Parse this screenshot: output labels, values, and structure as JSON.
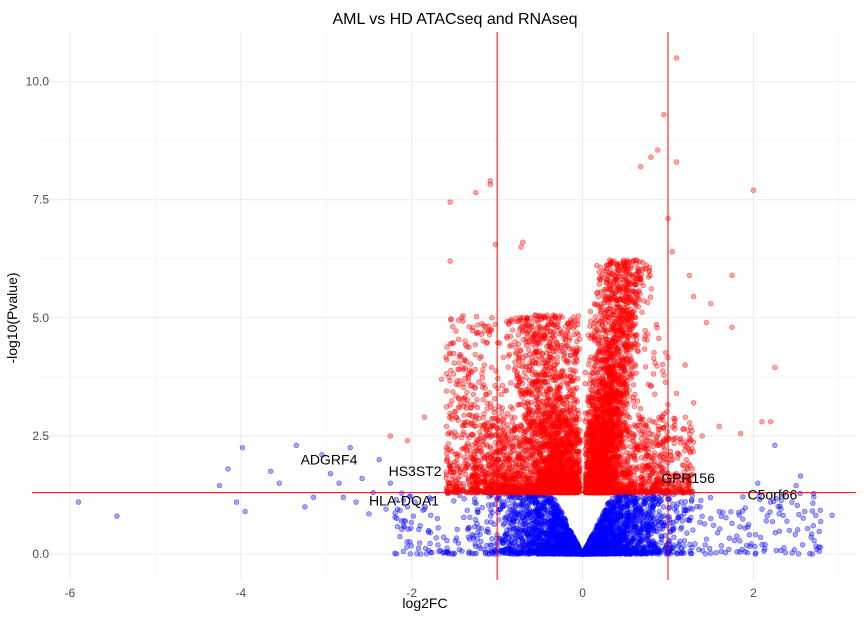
{
  "chart_data": {
    "type": "scatter",
    "title": "AML vs HD ATACseq and RNAseq",
    "xlabel": "log2FC",
    "ylabel": "-log10(Pvalue)",
    "xlim": [
      -6.35,
      3.2
    ],
    "ylim": [
      -0.55,
      11.05
    ],
    "x_ticks": [
      -6,
      -4,
      -2,
      0,
      2
    ],
    "y_ticks": [
      0.0,
      2.5,
      5.0,
      7.5,
      10.0
    ],
    "x_tick_labels": [
      "-6",
      "-4",
      "-2",
      "0",
      "2"
    ],
    "y_tick_labels": [
      "0.0",
      "2.5",
      "5.0",
      "7.5",
      "10.0"
    ],
    "grid": true,
    "thresholds": {
      "vertical": [
        -1,
        1
      ],
      "horizontal": 1.3,
      "color": "#ff0000"
    },
    "colors": {
      "significant": "#ff0000",
      "not_significant": "#0000ff"
    },
    "point_opacity": 0.35,
    "series": [
      {
        "color": "#0000ff",
        "points": [
          [
            -5.9,
            1.1
          ],
          [
            -5.45,
            0.8
          ],
          [
            -4.25,
            1.45
          ],
          [
            -4.15,
            1.8
          ],
          [
            -4.05,
            1.1
          ],
          [
            -3.98,
            2.25
          ],
          [
            -3.95,
            0.9
          ],
          [
            -3.65,
            1.75
          ],
          [
            -3.55,
            1.5
          ],
          [
            -3.35,
            2.3
          ],
          [
            -3.25,
            1.0
          ],
          [
            -3.15,
            1.2
          ],
          [
            -3.05,
            2.1
          ],
          [
            -2.95,
            1.7
          ],
          [
            -2.85,
            1.5
          ],
          [
            -2.8,
            1.2
          ],
          [
            -2.72,
            2.25
          ],
          [
            -2.65,
            1.1
          ],
          [
            -2.58,
            1.6
          ],
          [
            -2.5,
            0.85
          ],
          [
            -2.45,
            1.3
          ],
          [
            -2.38,
            2.0
          ],
          [
            -2.3,
            0.95
          ],
          [
            -2.25,
            1.5
          ],
          [
            -2.18,
            1.15
          ],
          [
            -2.12,
            0.7
          ],
          [
            -2.05,
            1.0
          ],
          [
            -1.98,
            0.8
          ],
          [
            -2.02,
            1.22
          ],
          [
            -1.9,
            0.6
          ],
          [
            -1.85,
            0.95
          ],
          [
            -1.78,
            0.45
          ],
          [
            -1.7,
            0.75
          ],
          [
            2.05,
            1.5
          ],
          [
            2.1,
            0.95
          ],
          [
            2.15,
            0.7
          ],
          [
            2.2,
            1.1
          ],
          [
            2.25,
            2.3
          ],
          [
            2.3,
            0.85
          ],
          [
            2.35,
            1.25
          ],
          [
            2.42,
            0.5
          ],
          [
            2.5,
            1.45
          ],
          [
            2.55,
            1.65
          ],
          [
            2.6,
            0.9
          ],
          [
            2.7,
            0.6
          ],
          [
            2.92,
            0.82
          ],
          [
            1.9,
            0.55
          ],
          [
            1.75,
            0.65
          ],
          [
            1.6,
            0.9
          ],
          [
            1.5,
            0.75
          ]
        ]
      },
      {
        "color": "#ff0000",
        "points": [
          [
            -1.55,
            7.45
          ],
          [
            -1.55,
            6.2
          ],
          [
            -1.25,
            7.65
          ],
          [
            -1.08,
            7.9
          ],
          [
            -1.08,
            7.82
          ],
          [
            -1.02,
            6.55
          ],
          [
            -0.7,
            6.6
          ],
          [
            -0.72,
            6.5
          ],
          [
            -2.25,
            2.5
          ],
          [
            -2.05,
            2.4
          ],
          [
            -1.85,
            2.9
          ],
          [
            -1.65,
            3.7
          ],
          [
            -1.45,
            3.3
          ],
          [
            -1.35,
            2.8
          ],
          [
            1.1,
            10.5
          ],
          [
            0.95,
            9.3
          ],
          [
            0.88,
            8.55
          ],
          [
            0.8,
            8.4
          ],
          [
            1.1,
            8.3
          ],
          [
            0.68,
            8.2
          ],
          [
            2.0,
            7.7
          ],
          [
            1.0,
            7.1
          ],
          [
            1.05,
            6.4
          ],
          [
            1.25,
            5.9
          ],
          [
            1.75,
            5.9
          ],
          [
            1.3,
            5.45
          ],
          [
            1.5,
            5.3
          ],
          [
            1.45,
            4.9
          ],
          [
            1.75,
            4.8
          ],
          [
            2.25,
            3.95
          ],
          [
            1.2,
            4.0
          ],
          [
            1.1,
            3.4
          ],
          [
            1.3,
            3.2
          ],
          [
            2.1,
            2.8
          ],
          [
            2.2,
            2.8
          ],
          [
            1.85,
            2.55
          ],
          [
            1.6,
            2.7
          ],
          [
            1.4,
            2.5
          ],
          [
            1.15,
            2.45
          ]
        ]
      }
    ],
    "generated_clouds": [
      {
        "name": "blue-lower-cloud",
        "color": "#0000ff",
        "count": 3200,
        "x_range": [
          -2.2,
          2.8
        ],
        "spread": 0.9,
        "y_max": 1.3,
        "seed": 11
      },
      {
        "name": "red-upper-cloud",
        "color": "#ff0000",
        "count": 5200,
        "x_range": [
          -1.6,
          1.05
        ],
        "spread": 0.45,
        "y_min": 1.3,
        "y_max": 6.0,
        "seed": 29
      }
    ],
    "annotations": [
      {
        "text": "ADGRF4",
        "x": -3.3,
        "y": 1.9
      },
      {
        "text": "HS3ST2",
        "x": -2.27,
        "y": 1.65
      },
      {
        "text": "HLA-DQA1",
        "x": -2.5,
        "y": 1.03
      },
      {
        "text": "GPR156",
        "x": 0.92,
        "y": 1.5
      },
      {
        "text": "C5orf66",
        "x": 1.93,
        "y": 1.15
      }
    ]
  }
}
